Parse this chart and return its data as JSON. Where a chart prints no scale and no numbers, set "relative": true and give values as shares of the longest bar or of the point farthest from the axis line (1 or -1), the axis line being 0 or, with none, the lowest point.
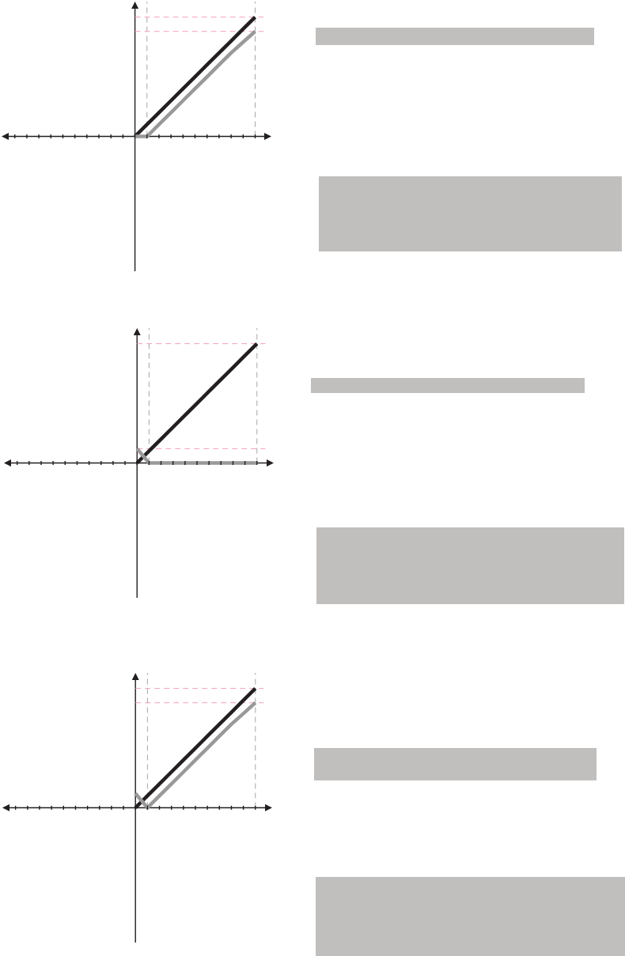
{
  "chart_data": [
    {
      "type": "line",
      "relative": true,
      "categories": [
        null,
        null,
        null,
        null,
        null,
        null,
        null,
        null,
        null,
        null,
        null,
        null,
        null,
        null,
        null,
        null,
        null,
        null,
        null,
        null,
        null
      ],
      "series": [
        {
          "color": "#231f20",
          "values": [
            null,
            null,
            null,
            null,
            null,
            null,
            null,
            null,
            null,
            null,
            0,
            0.1,
            0.2,
            0.3,
            0.4,
            0.5,
            0.6,
            0.7,
            0.8,
            0.9,
            1
          ]
        },
        {
          "color": "#999999",
          "values": [
            null,
            null,
            null,
            null,
            null,
            null,
            null,
            null,
            null,
            null,
            0,
            0,
            0.1,
            0.2,
            0.3,
            0.4,
            0.5,
            0.6,
            0.7,
            0.79,
            0.88
          ]
        }
      ],
      "ref_lines": [
        {
          "axis": "y",
          "value": 1,
          "color": "#f4a0c0",
          "line_style": "dashed"
        },
        {
          "axis": "y",
          "value": 0.88,
          "color": "#f4a0c0",
          "line_style": "dashed"
        }
      ]
    },
    {
      "type": "line",
      "relative": true,
      "categories": [
        null,
        null,
        null,
        null,
        null,
        null,
        null,
        null,
        null,
        null,
        null,
        null,
        null,
        null,
        null,
        null,
        null,
        null,
        null,
        null,
        null
      ],
      "series": [
        {
          "color": "#231f20",
          "values": [
            null,
            null,
            null,
            null,
            null,
            null,
            null,
            null,
            null,
            null,
            0,
            0.1,
            0.2,
            0.3,
            0.4,
            0.5,
            0.6,
            0.7,
            0.8,
            0.9,
            1
          ]
        },
        {
          "color": "#999999",
          "values": [
            null,
            null,
            null,
            null,
            null,
            null,
            null,
            null,
            null,
            null,
            0.12,
            0,
            0,
            0,
            0,
            0,
            0,
            0,
            0,
            0,
            0
          ]
        }
      ],
      "ref_lines": [
        {
          "axis": "y",
          "value": 1,
          "color": "#f4a0c0",
          "line_style": "dashed"
        },
        {
          "axis": "y",
          "value": 0.12,
          "color": "#f4a0c0",
          "line_style": "dashed"
        }
      ]
    },
    {
      "type": "line",
      "relative": true,
      "categories": [
        null,
        null,
        null,
        null,
        null,
        null,
        null,
        null,
        null,
        null,
        null,
        null,
        null,
        null,
        null,
        null,
        null,
        null,
        null,
        null,
        null
      ],
      "series": [
        {
          "color": "#231f20",
          "values": [
            null,
            null,
            null,
            null,
            null,
            null,
            null,
            null,
            null,
            null,
            0,
            0.1,
            0.2,
            0.3,
            0.4,
            0.5,
            0.6,
            0.7,
            0.8,
            0.9,
            1
          ]
        },
        {
          "color": "#999999",
          "values": [
            null,
            null,
            null,
            null,
            null,
            null,
            null,
            null,
            null,
            null,
            0.12,
            0,
            0.1,
            0.2,
            0.3,
            0.4,
            0.5,
            0.6,
            0.7,
            0.79,
            0.88
          ]
        }
      ],
      "ref_lines": [
        {
          "axis": "y",
          "value": 1,
          "color": "#f4a0c0",
          "line_style": "dashed"
        },
        {
          "axis": "y",
          "value": 0.88,
          "color": "#f4a0c0",
          "line_style": "dashed"
        }
      ]
    }
  ]
}
